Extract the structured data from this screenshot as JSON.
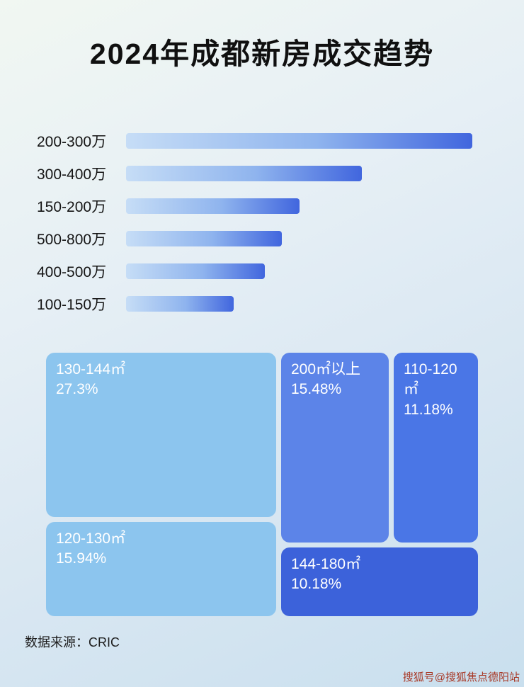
{
  "page": {
    "title": "2024年成都新房成交趋势",
    "source": "数据来源：CRIC",
    "watermark": "搜狐号@搜狐焦点德阳站"
  },
  "colors": {
    "bar_gradient_start": "#c6ddf6",
    "bar_gradient_end": "#4166de",
    "treemap_light_blue": "#8cc5ee",
    "treemap_mid_blue": "#5c84e8",
    "treemap_blue": "#4a76e6",
    "treemap_dark_blue": "#3c62da",
    "watermark_red": "#a83a28"
  },
  "chart_data": [
    {
      "type": "bar",
      "orientation": "horizontal",
      "title": "2024年成都新房成交趋势",
      "categories": [
        "200-300万",
        "300-400万",
        "150-200万",
        "500-800万",
        "400-500万",
        "100-150万"
      ],
      "values": [
        100,
        68,
        50,
        45,
        40,
        31
      ],
      "xlabel": "",
      "ylabel": "",
      "axis_note": "no numeric axis shown; values are relative bar lengths (% of longest bar)",
      "grid": false,
      "legend": false
    },
    {
      "type": "treemap",
      "items": [
        {
          "label": "130-144㎡",
          "value": "27.3%",
          "color": "#8cc5ee"
        },
        {
          "label": "200㎡以上",
          "value": "15.48%",
          "color": "#5c84e8"
        },
        {
          "label": "110-120㎡",
          "value": "11.18%",
          "color": "#4a76e6"
        },
        {
          "label": "120-130㎡",
          "value": "15.94%",
          "color": "#8cc5ee"
        },
        {
          "label": "144-180㎡",
          "value": "10.18%",
          "color": "#3c62da"
        }
      ]
    }
  ]
}
